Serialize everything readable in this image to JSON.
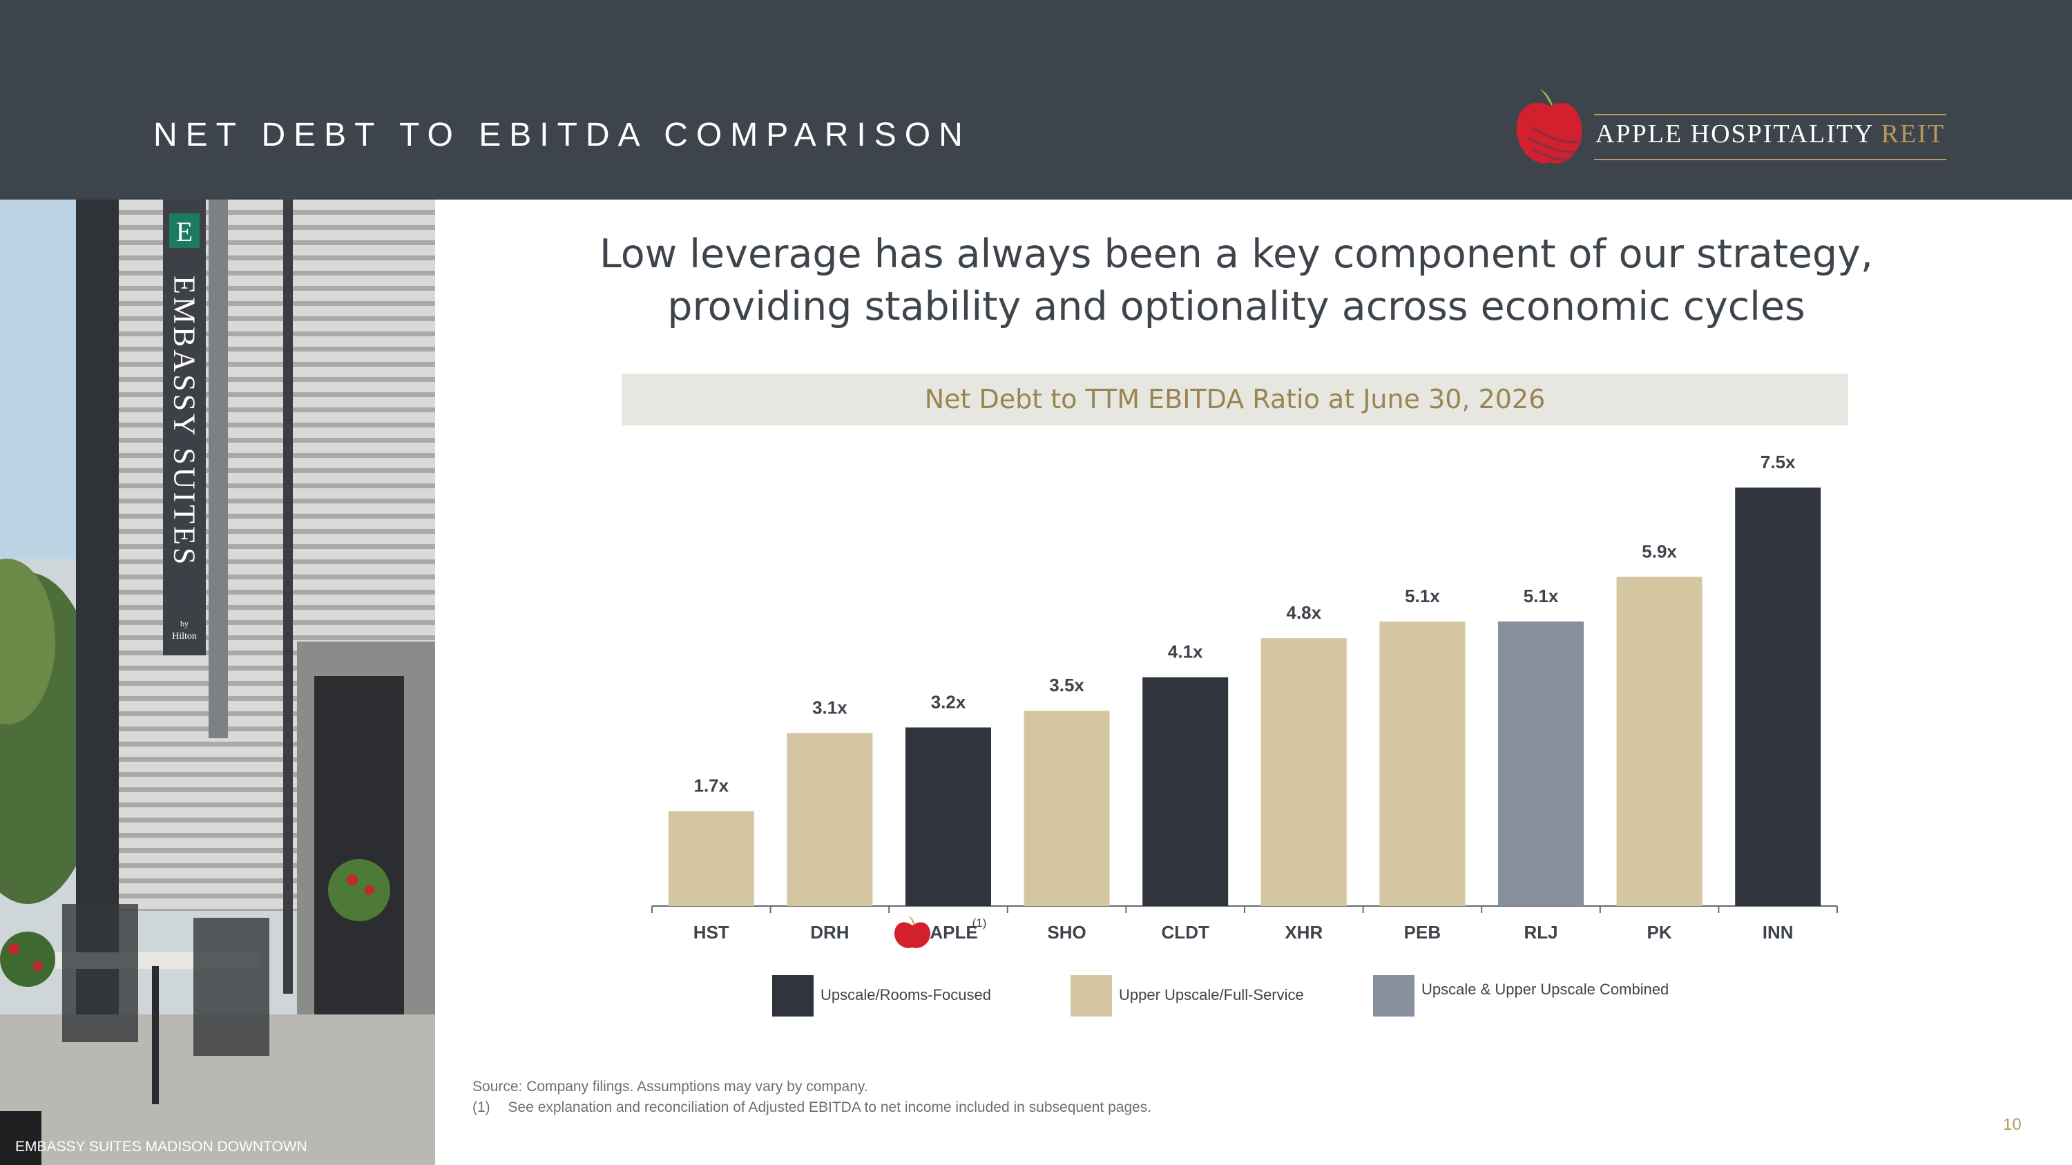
{
  "header": {
    "title": "NET DEBT TO EBITDA COMPARISON",
    "logo_name": "APPLE HOSPITALITY",
    "logo_suffix": "REIT"
  },
  "photo": {
    "sign_initial": "E",
    "sign_text": "EMBASSY SUITES",
    "sign_by": "by",
    "sign_brand": "Hilton",
    "caption": "EMBASSY SUITES MADISON DOWNTOWN"
  },
  "headline": {
    "line1": "Low leverage has always been a key component of our strategy,",
    "line2": "providing stability and optionality across economic cycles"
  },
  "colors": {
    "upscale_rooms": "#30353d",
    "upper_upscale": "#d5c6a2",
    "combined": "#87919d",
    "header_bg": "#3e444c",
    "gold": "#b79b5a"
  },
  "chart_data": {
    "type": "bar",
    "title": "Net Debt to TTM EBITDA Ratio at June 30, 2026",
    "categories": [
      "HST",
      "DRH",
      "APLE",
      "SHO",
      "CLDT",
      "XHR",
      "PEB",
      "RLJ",
      "PK",
      "INN"
    ],
    "values": [
      1.7,
      3.1,
      3.2,
      3.5,
      4.1,
      4.8,
      5.1,
      5.1,
      5.9,
      7.5
    ],
    "labels": [
      "1.7x",
      "3.1x",
      "3.2x",
      "3.5x",
      "4.1x",
      "4.8x",
      "5.1x",
      "5.1x",
      "5.9x",
      "7.5x"
    ],
    "segments": [
      "upper_upscale",
      "upper_upscale",
      "upscale_rooms",
      "upper_upscale",
      "upscale_rooms",
      "upper_upscale",
      "upper_upscale",
      "combined",
      "upper_upscale",
      "upscale_rooms"
    ],
    "annotations": [
      {
        "category": "APLE",
        "text": "(1)"
      }
    ],
    "ylim": [
      0,
      7.5
    ],
    "grid": false,
    "legend": [
      {
        "key": "upscale_rooms",
        "label": "Upscale/Rooms-Focused"
      },
      {
        "key": "upper_upscale",
        "label": "Upper Upscale/Full-Service"
      },
      {
        "key": "combined",
        "label": "Upscale & Upper Upscale Combined"
      }
    ],
    "legend_position": "bottom"
  },
  "footnotes": {
    "source": "Source: Company filings. Assumptions may vary by company.",
    "note1_marker": "(1)",
    "note1_text": "See explanation and reconciliation of Adjusted EBITDA to net income included in subsequent pages."
  },
  "page_number": "10"
}
